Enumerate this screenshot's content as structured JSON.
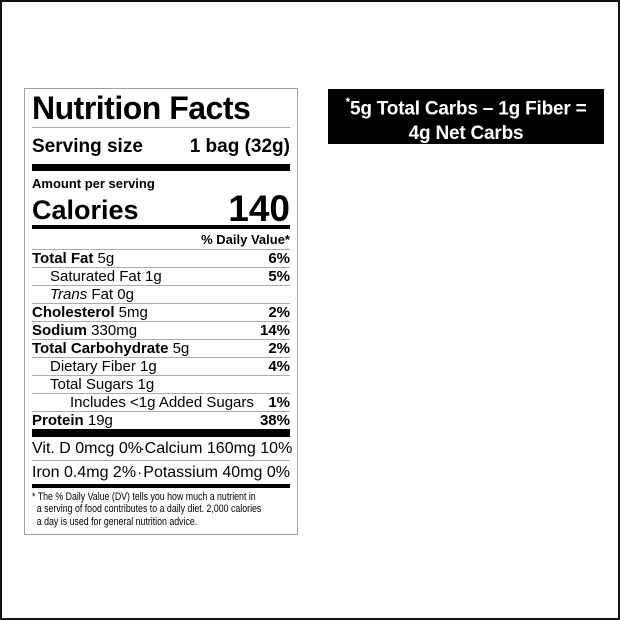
{
  "canvas": {
    "background_color": "#ffffff",
    "border_color": "#111111"
  },
  "callout": {
    "asterisk": "*",
    "line1": "5g Total Carbs – 1g Fiber =",
    "line2": "4g Net Carbs",
    "background_color": "#000000",
    "text_color": "#ffffff"
  },
  "nutrition_label": {
    "title": "Nutrition Facts",
    "serving": {
      "label": "Serving size",
      "value": "1 bag (32g)"
    },
    "amount_per_serving": "Amount per serving",
    "calories": {
      "label": "Calories",
      "value": "140"
    },
    "daily_value_header": "% Daily Value*",
    "nutrient_rows": [
      {
        "segments": [
          {
            "t": "Total Fat",
            "b": true
          },
          {
            "t": " 5g"
          }
        ],
        "dv": "6%",
        "indent": 0
      },
      {
        "segments": [
          {
            "t": "Saturated Fat 1g"
          }
        ],
        "dv": "5%",
        "indent": 1
      },
      {
        "segments": [
          {
            "t": "Trans",
            "i": true
          },
          {
            "t": " Fat 0g"
          }
        ],
        "dv": "",
        "indent": 1
      },
      {
        "segments": [
          {
            "t": "Cholesterol",
            "b": true
          },
          {
            "t": " 5mg"
          }
        ],
        "dv": "2%",
        "indent": 0
      },
      {
        "segments": [
          {
            "t": "Sodium",
            "b": true
          },
          {
            "t": " 330mg"
          }
        ],
        "dv": "14%",
        "indent": 0
      },
      {
        "segments": [
          {
            "t": "Total Carbohydrate",
            "b": true
          },
          {
            "t": " 5g"
          }
        ],
        "dv": "2%",
        "indent": 0
      },
      {
        "segments": [
          {
            "t": "Dietary Fiber 1g"
          }
        ],
        "dv": "4%",
        "indent": 1
      },
      {
        "segments": [
          {
            "t": "Total Sugars 1g"
          }
        ],
        "dv": "",
        "indent": 1
      },
      {
        "segments": [
          {
            "t": "Includes <1g Added Sugars"
          }
        ],
        "dv": "1%",
        "indent": 2
      },
      {
        "segments": [
          {
            "t": "Protein",
            "b": true
          },
          {
            "t": " 19g"
          }
        ],
        "dv": "38%",
        "indent": 0
      }
    ],
    "micro_rows": [
      {
        "left": "Vit. D 0mcg 0%",
        "separator": "·",
        "right": "Calcium 160mg 10%"
      },
      {
        "left": "Iron 0.4mg 2%",
        "separator": "·",
        "right": "Potassium 40mg 0%"
      }
    ],
    "footnote_lines": [
      "* The % Daily Value (DV) tells you how much a nutrient in",
      "a serving of food contributes to a daily diet. 2,000 calories",
      "a day is used for general nutrition advice."
    ]
  }
}
